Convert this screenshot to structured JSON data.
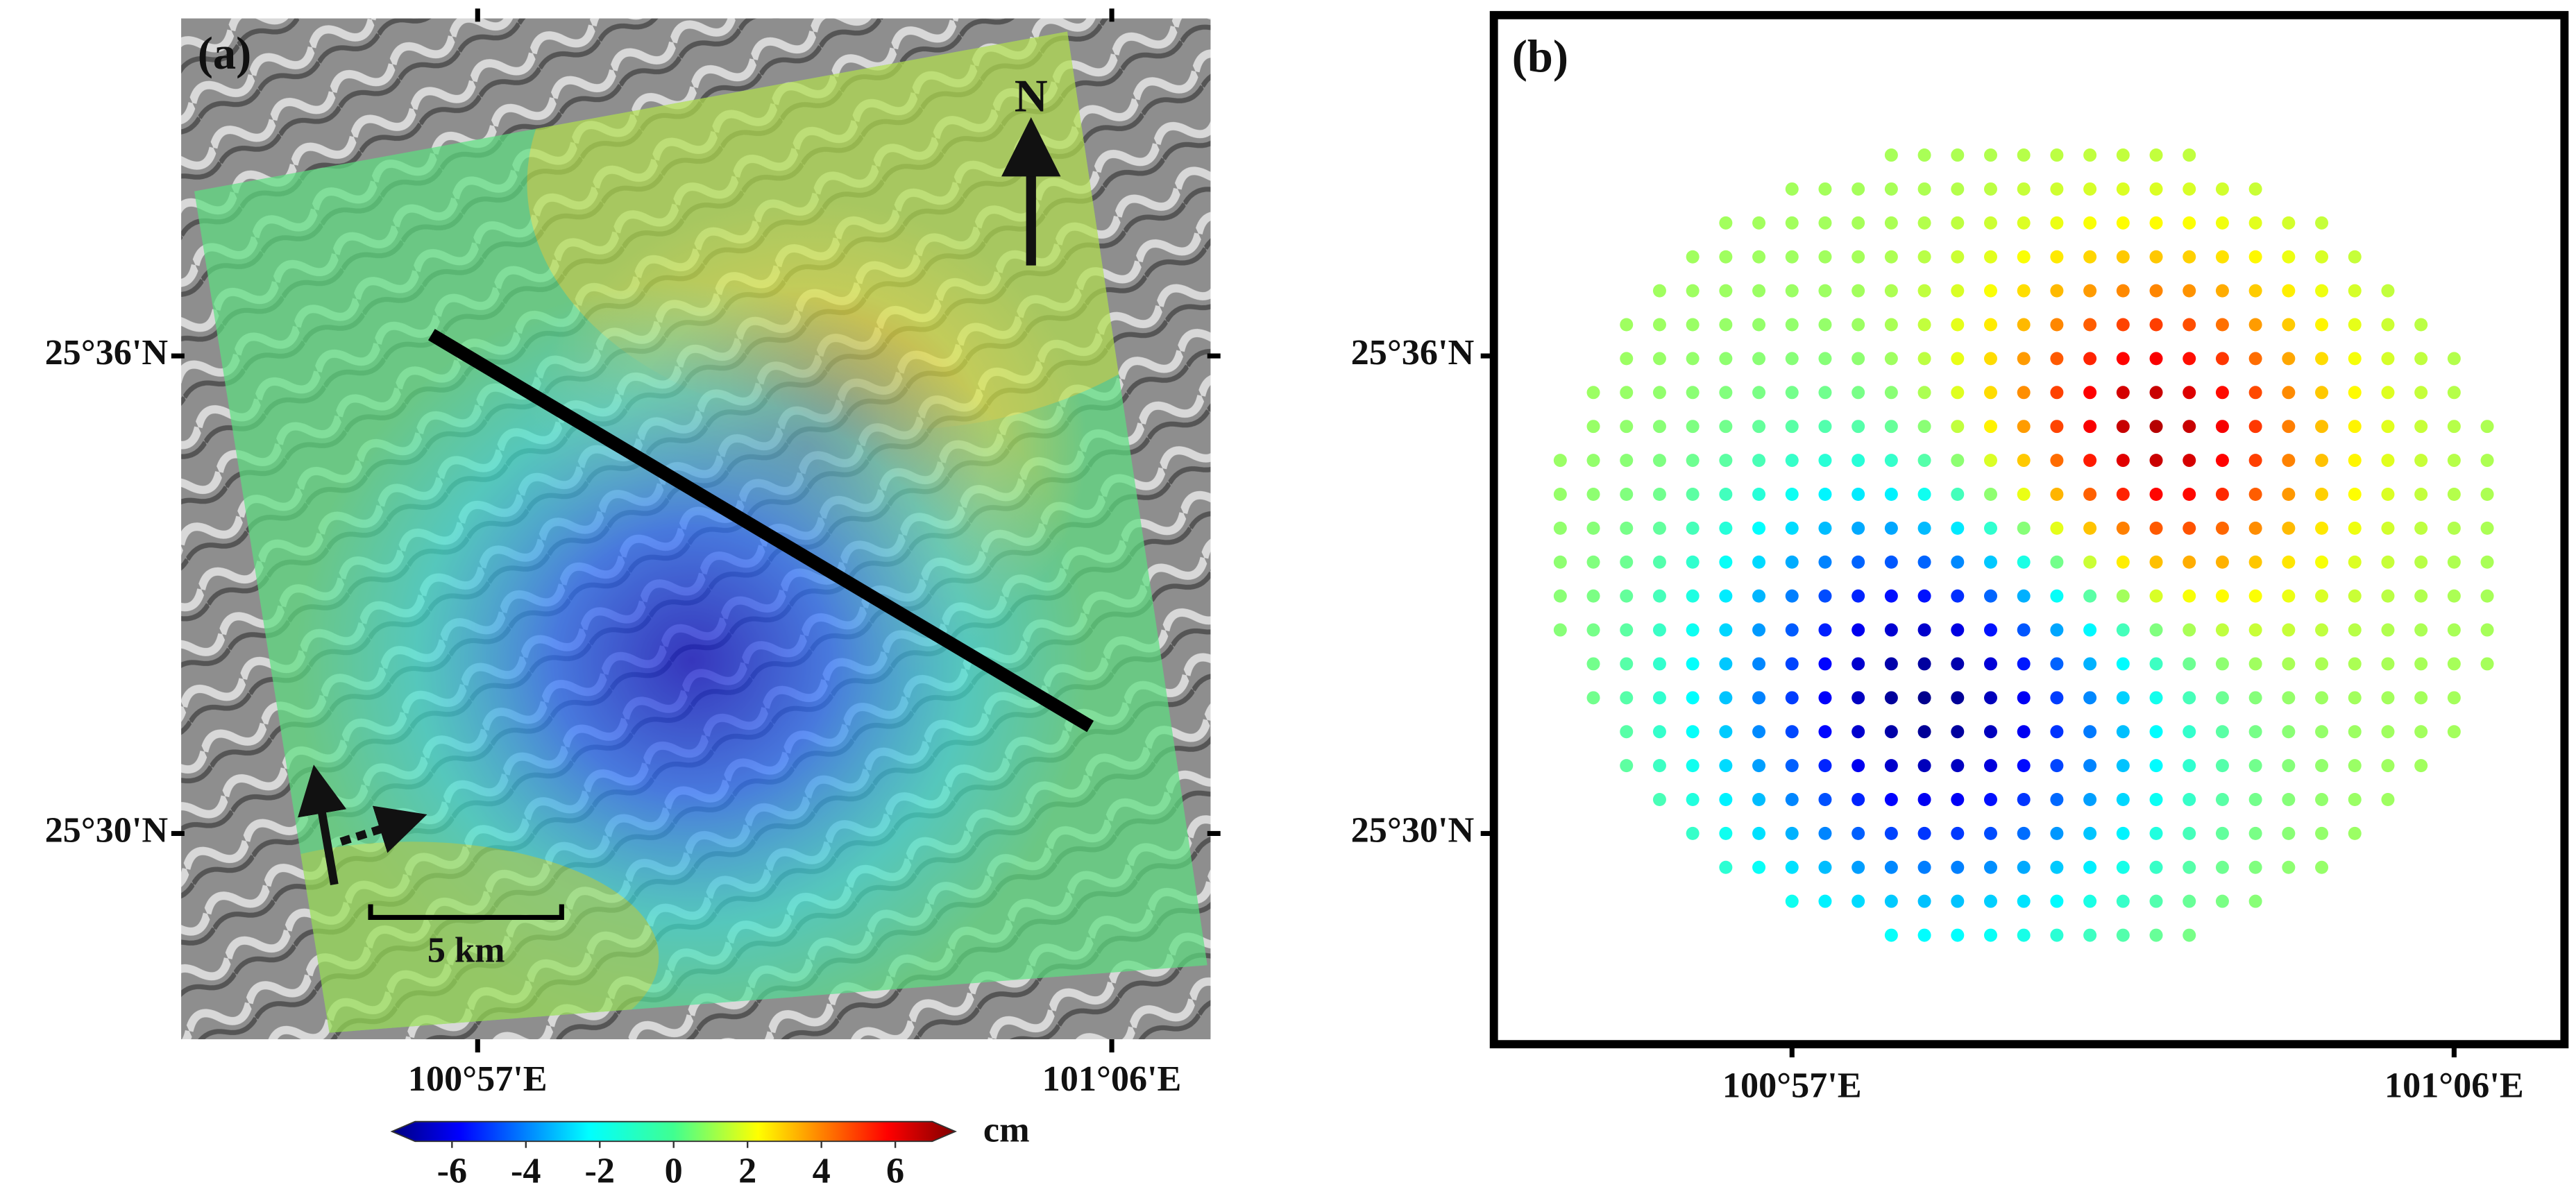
{
  "panels": [
    {
      "label": "(a)",
      "lat_labels": [
        "25°36'N",
        "25°30'N"
      ],
      "lon_labels": [
        "100°57'E",
        "101°06'E"
      ],
      "north": "N",
      "scale_bar": "5 km"
    },
    {
      "label": "(b)",
      "lat_labels": [
        "25°36'N",
        "25°30'N"
      ],
      "lon_labels": [
        "100°57'E",
        "101°06'E"
      ]
    }
  ],
  "colorbar": {
    "unit": "cm",
    "lim": [
      -7,
      7
    ],
    "ticks": [
      -6,
      -4,
      -2,
      0,
      2,
      4,
      6
    ]
  }
}
